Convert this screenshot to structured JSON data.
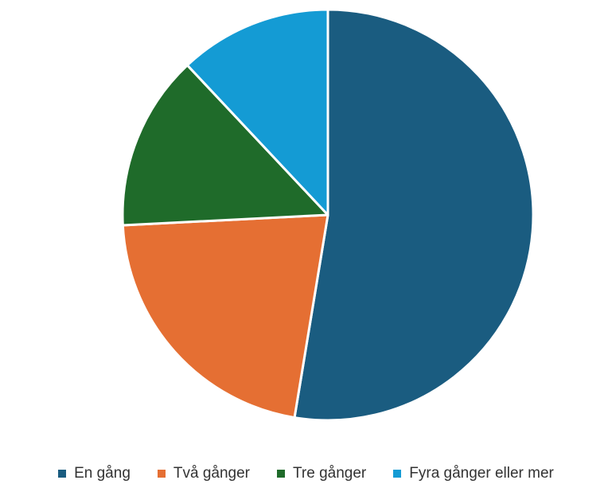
{
  "chart_data": {
    "type": "pie",
    "title": "",
    "categories": [
      "En gång",
      "Två gånger",
      "Tre gånger",
      "Fyra gånger eller mer"
    ],
    "values": [
      52.6,
      21.6,
      13.8,
      12.0
    ],
    "unit": "percent",
    "colors": [
      "#1a5c80",
      "#e56f33",
      "#1f6b2a",
      "#149bd4"
    ],
    "start_angle_deg": 0,
    "direction": "clockwise",
    "slice_border_color": "#ffffff",
    "legend": {
      "placement": "bottom",
      "entries": [
        "En gång",
        "Två gånger",
        "Tre gånger",
        "Fyra gånger eller mer"
      ]
    }
  }
}
